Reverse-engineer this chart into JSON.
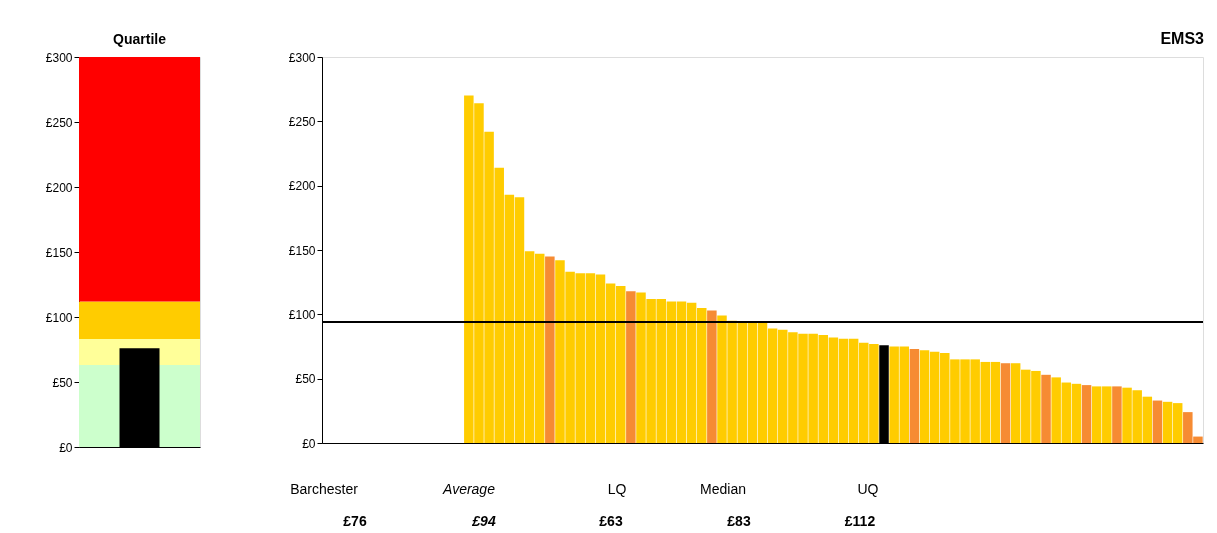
{
  "chart_data": [
    {
      "type": "bar",
      "title": "Quartile",
      "categories": [
        null
      ],
      "values": [
        76
      ],
      "colors": [
        "#000000"
      ],
      "ylim": [
        0,
        300
      ],
      "yticks": [
        {
          "value": 0,
          "label": "£0"
        },
        {
          "value": 50,
          "label": "£50"
        },
        {
          "value": 100,
          "label": "£100"
        },
        {
          "value": 150,
          "label": "£150"
        },
        {
          "value": 200,
          "label": "£200"
        },
        {
          "value": 250,
          "label": "£250"
        },
        {
          "value": 300,
          "label": "£300"
        }
      ],
      "bands": [
        {
          "axis": "y",
          "from": 0,
          "to": 63,
          "color": "#ccffcc"
        },
        {
          "axis": "y",
          "from": 63,
          "to": 83,
          "color": "#ffff99"
        },
        {
          "axis": "y",
          "from": 83,
          "to": 112,
          "color": "#ffcc00"
        },
        {
          "axis": "y",
          "from": 112,
          "to": 300,
          "color": "#ff0000"
        }
      ],
      "tick_labels": "y",
      "grid": false
    },
    {
      "type": "bar",
      "title": "EMS3",
      "categories": [
        null,
        null,
        null,
        null,
        null,
        null,
        null,
        null,
        null,
        null,
        null,
        null,
        null,
        null,
        null,
        null,
        null,
        null,
        null,
        null,
        null,
        null,
        null,
        null,
        null,
        null,
        null,
        null,
        null,
        null,
        null,
        null,
        null,
        null,
        null,
        null,
        null,
        null,
        null,
        null,
        null,
        null,
        null,
        null,
        null,
        null,
        null,
        null,
        null,
        null,
        null,
        null,
        null,
        null,
        null,
        null,
        null,
        null,
        null,
        null,
        null,
        null,
        null,
        null,
        null,
        null,
        null,
        null,
        null,
        null,
        null,
        null,
        null,
        null,
        null,
        null,
        null,
        null,
        null,
        null,
        null,
        null,
        null,
        null,
        null,
        null,
        null
      ],
      "values": [
        null,
        null,
        null,
        null,
        null,
        null,
        null,
        null,
        null,
        null,
        null,
        null,
        null,
        null,
        270,
        264,
        242,
        214,
        193,
        191,
        149,
        147,
        145,
        142,
        133,
        132,
        132,
        131,
        124,
        122,
        118,
        117,
        112,
        112,
        110,
        110,
        109,
        105,
        103,
        99,
        95,
        94,
        94,
        94,
        89,
        88,
        86,
        85,
        85,
        84,
        82,
        81,
        81,
        78,
        77,
        76,
        75,
        75,
        73,
        72,
        71,
        70,
        65,
        65,
        65,
        63,
        63,
        62,
        62,
        57,
        56,
        53,
        51,
        47,
        46,
        45,
        44,
        44,
        44,
        43,
        41,
        36,
        33,
        32,
        31,
        24,
        5
      ],
      "colors": [
        null,
        null,
        null,
        null,
        null,
        null,
        null,
        null,
        null,
        null,
        null,
        null,
        null,
        null,
        "#ffcc00",
        "#ffcc00",
        "#ffcc00",
        "#ffcc00",
        "#ffcc00",
        "#ffcc00",
        "#ffcc00",
        "#ffcc00",
        "#f68b33",
        "#ffcc00",
        "#ffcc00",
        "#ffcc00",
        "#ffcc00",
        "#ffcc00",
        "#ffcc00",
        "#ffcc00",
        "#f68b33",
        "#ffcc00",
        "#ffcc00",
        "#ffcc00",
        "#ffcc00",
        "#ffcc00",
        "#ffcc00",
        "#ffcc00",
        "#f68b33",
        "#ffcc00",
        "#ffcc00",
        "#ffcc00",
        "#ffcc00",
        "#ffcc00",
        "#ffcc00",
        "#ffcc00",
        "#ffcc00",
        "#ffcc00",
        "#ffcc00",
        "#ffcc00",
        "#ffcc00",
        "#ffcc00",
        "#ffcc00",
        "#ffcc00",
        "#ffcc00",
        "#000000",
        "#ffcc00",
        "#ffcc00",
        "#f68b33",
        "#ffcc00",
        "#ffcc00",
        "#ffcc00",
        "#ffcc00",
        "#ffcc00",
        "#ffcc00",
        "#ffcc00",
        "#ffcc00",
        "#f68b33",
        "#ffcc00",
        "#ffcc00",
        "#ffcc00",
        "#f68b33",
        "#ffcc00",
        "#ffcc00",
        "#ffcc00",
        "#f68b33",
        "#ffcc00",
        "#ffcc00",
        "#f68b33",
        "#ffcc00",
        "#ffcc00",
        "#ffcc00",
        "#f68b33",
        "#ffcc00",
        "#ffcc00",
        "#f68b33",
        "#f68b33"
      ],
      "ylim": [
        0,
        300
      ],
      "yticks": [
        {
          "value": 0,
          "label": "£0"
        },
        {
          "value": 50,
          "label": "£50"
        },
        {
          "value": 100,
          "label": "£100"
        },
        {
          "value": 150,
          "label": "£150"
        },
        {
          "value": 200,
          "label": "£200"
        },
        {
          "value": 250,
          "label": "£250"
        },
        {
          "value": 300,
          "label": "£300"
        }
      ],
      "ref_lines": [
        {
          "axis": "y",
          "value": 94,
          "color": "#000000"
        }
      ],
      "annotations": [
        "Barchester",
        "Average",
        "LQ",
        "Median",
        "UQ",
        "£76",
        "£94",
        "£63",
        "£83",
        "£112"
      ],
      "tick_labels": "y",
      "grid": false
    }
  ]
}
